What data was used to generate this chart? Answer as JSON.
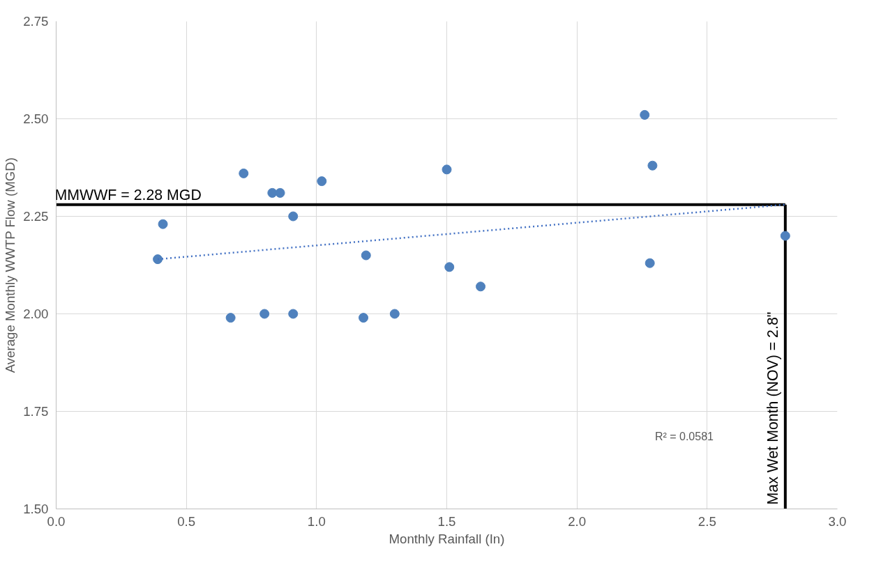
{
  "chart_data": {
    "type": "scatter",
    "xlabel": "Monthly Rainfall (In)",
    "ylabel": "Average Monthly WWTP Flow (MGD)",
    "xlim": [
      0,
      3
    ],
    "ylim": [
      1.5,
      2.75
    ],
    "xticks": [
      {
        "value": 0,
        "label": "0.0"
      },
      {
        "value": 0.5,
        "label": "0.5"
      },
      {
        "value": 1,
        "label": "1.0"
      },
      {
        "value": 1.5,
        "label": "1.5"
      },
      {
        "value": 2,
        "label": "2.0"
      },
      {
        "value": 2.5,
        "label": "2.5"
      },
      {
        "value": 3,
        "label": "3.0"
      }
    ],
    "yticks": [
      {
        "value": 1.5,
        "label": "1.50"
      },
      {
        "value": 1.75,
        "label": "1.75"
      },
      {
        "value": 2,
        "label": "2.00"
      },
      {
        "value": 2.25,
        "label": "2.25"
      },
      {
        "value": 2.5,
        "label": "2.50"
      },
      {
        "value": 2.75,
        "label": "2.75"
      }
    ],
    "grid": true,
    "marker": "circle",
    "series": [
      {
        "color": "#4f81bd",
        "x": [
          0.39,
          0.41,
          0.67,
          0.72,
          0.8,
          0.83,
          0.86,
          0.91,
          0.91,
          1.02,
          1.18,
          1.19,
          1.3,
          1.5,
          1.51,
          1.63,
          2.26,
          2.29,
          2.28,
          2.8
        ],
        "values": [
          2.14,
          2.23,
          1.99,
          2.36,
          2.0,
          2.31,
          2.31,
          2.25,
          2.0,
          2.34,
          1.99,
          2.15,
          2.0,
          2.37,
          2.12,
          2.07,
          2.51,
          2.38,
          2.13,
          2.2
        ]
      },
      {
        "type": "line",
        "color": "#4472c4",
        "line_style": "dotted",
        "marker": "none",
        "x": [
          0.39,
          2.8
        ],
        "values": [
          2.14,
          2.28
        ]
      }
    ],
    "ref_lines": [
      {
        "axis": "y",
        "value": 2.28,
        "label": "MMWWF = 2.28 MGD",
        "color": "#000000"
      },
      {
        "axis": "x",
        "value": 2.8,
        "label": "Max Wet Month (NOV) = 2.8\"",
        "color": "#000000"
      }
    ],
    "annotations": [
      "R² = 0.0581"
    ]
  }
}
